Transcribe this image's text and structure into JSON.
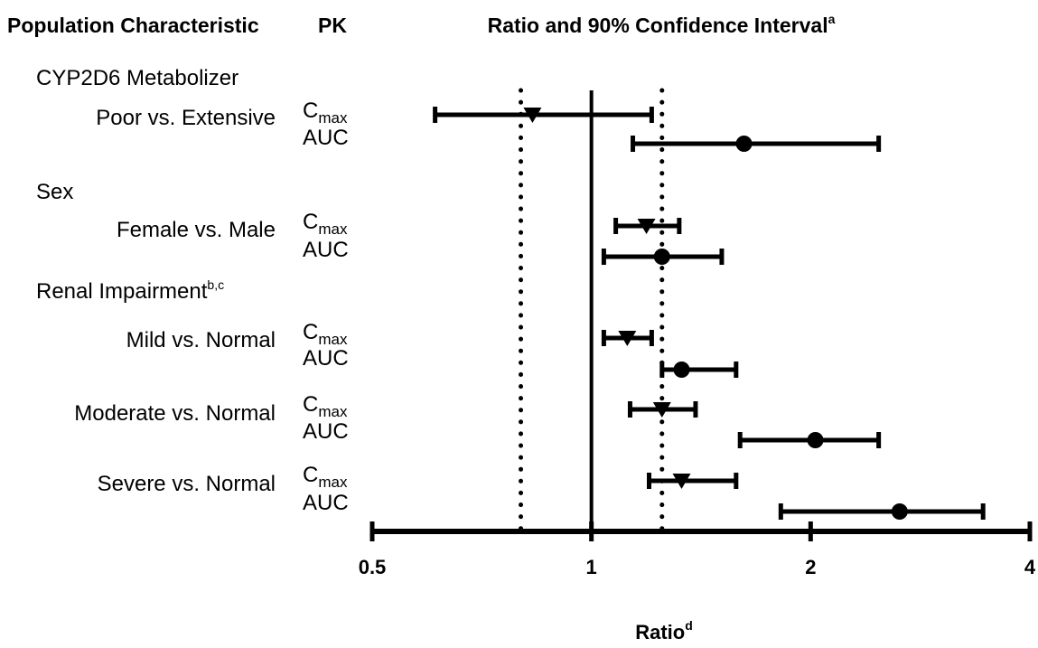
{
  "header": {
    "population_col": "Population Characteristic",
    "pk_col": "PK",
    "ratio_title": "Ratio and 90% Confidence Interval",
    "ratio_title_sup": "a"
  },
  "chart_data": {
    "type": "forest",
    "title": "Ratio and 90% Confidence Interval",
    "title_superscript": "a",
    "xlabel": "Ratio",
    "xlabel_superscript": "d",
    "xscale": "log2",
    "xlim": [
      0.5,
      4
    ],
    "xticks": [
      0.5,
      1,
      2,
      4
    ],
    "xtick_labels": [
      "0.5",
      "1",
      "2",
      "4"
    ],
    "reference_line": 1,
    "bounds_dotted": [
      0.8,
      1.25
    ],
    "legend": "none",
    "marker_legend": {
      "Cmax": "triangle-down",
      "AUC": "circle"
    },
    "groups": [
      {
        "label": "CYP2D6 Metabolizer",
        "label_superscript": "",
        "comparisons": [
          {
            "label": "Poor vs. Extensive",
            "measures": [
              {
                "pk": "Cmax",
                "pk_main": "C",
                "pk_sub": "max",
                "ratio": 0.83,
                "lower": 0.61,
                "upper": 1.21
              },
              {
                "pk": "AUC",
                "pk_main": "AUC",
                "pk_sub": "",
                "ratio": 1.62,
                "lower": 1.14,
                "upper": 2.48
              }
            ]
          }
        ]
      },
      {
        "label": "Sex",
        "label_superscript": "",
        "comparisons": [
          {
            "label": "Female vs. Male",
            "measures": [
              {
                "pk": "Cmax",
                "pk_main": "C",
                "pk_sub": "max",
                "ratio": 1.19,
                "lower": 1.08,
                "upper": 1.32
              },
              {
                "pk": "AUC",
                "pk_main": "AUC",
                "pk_sub": "",
                "ratio": 1.25,
                "lower": 1.04,
                "upper": 1.51
              }
            ]
          }
        ]
      },
      {
        "label": "Renal Impairment",
        "label_superscript": "b,c",
        "comparisons": [
          {
            "label": "Mild vs. Normal",
            "measures": [
              {
                "pk": "Cmax",
                "pk_main": "C",
                "pk_sub": "max",
                "ratio": 1.12,
                "lower": 1.04,
                "upper": 1.21
              },
              {
                "pk": "AUC",
                "pk_main": "AUC",
                "pk_sub": "",
                "ratio": 1.33,
                "lower": 1.25,
                "upper": 1.58
              }
            ]
          },
          {
            "label": "Moderate vs. Normal",
            "measures": [
              {
                "pk": "Cmax",
                "pk_main": "C",
                "pk_sub": "max",
                "ratio": 1.25,
                "lower": 1.13,
                "upper": 1.39
              },
              {
                "pk": "AUC",
                "pk_main": "AUC",
                "pk_sub": "",
                "ratio": 2.03,
                "lower": 1.6,
                "upper": 2.48
              }
            ]
          },
          {
            "label": "Severe vs. Normal",
            "measures": [
              {
                "pk": "Cmax",
                "pk_main": "C",
                "pk_sub": "max",
                "ratio": 1.33,
                "lower": 1.2,
                "upper": 1.58
              },
              {
                "pk": "AUC",
                "pk_main": "AUC",
                "pk_sub": "",
                "ratio": 2.65,
                "lower": 1.82,
                "upper": 3.45
              }
            ]
          }
        ]
      }
    ]
  }
}
